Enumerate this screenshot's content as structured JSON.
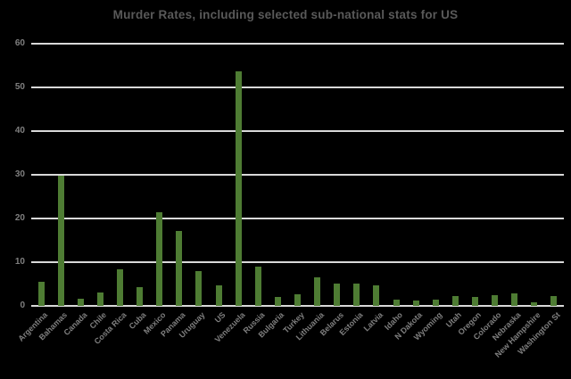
{
  "chart_data": {
    "type": "bar",
    "title": "Murder Rates, including selected sub-national stats for US",
    "categories": [
      "Argentina",
      "Bahamas",
      "Canada",
      "Chile",
      "Costa Rica",
      "Cuba",
      "Mexico",
      "Panama",
      "Uruguay",
      "US",
      "Venezuela",
      "Russia",
      "Bulgaria",
      "Turkey",
      "Lithuania",
      "Belarus",
      "Estonia",
      "Latvia",
      "Idaho",
      "N Dakota",
      "Wyoming",
      "Utah",
      "Oregon",
      "Colorado",
      "Nebraska",
      "New Hampshire",
      "Washington St"
    ],
    "values": [
      5.5,
      29.8,
      1.6,
      3.1,
      8.4,
      4.2,
      21.5,
      17.2,
      7.9,
      4.7,
      53.7,
      9.0,
      2.0,
      2.6,
      6.6,
      5.1,
      5.2,
      4.7,
      1.5,
      1.2,
      1.4,
      2.2,
      2.0,
      2.4,
      2.9,
      0.9,
      2.3
    ],
    "xlabel": "",
    "ylabel": "",
    "ylim": [
      0,
      60
    ],
    "yticks": [
      0,
      10,
      20,
      30,
      40,
      50,
      60
    ],
    "grid": "horizontal",
    "legend": "none"
  },
  "colors": {
    "background": "#000000",
    "bar": "#4e7c33",
    "gridline": "#d9d9d9",
    "title_text": "#595959",
    "axis_text": "#7f7f7f"
  }
}
